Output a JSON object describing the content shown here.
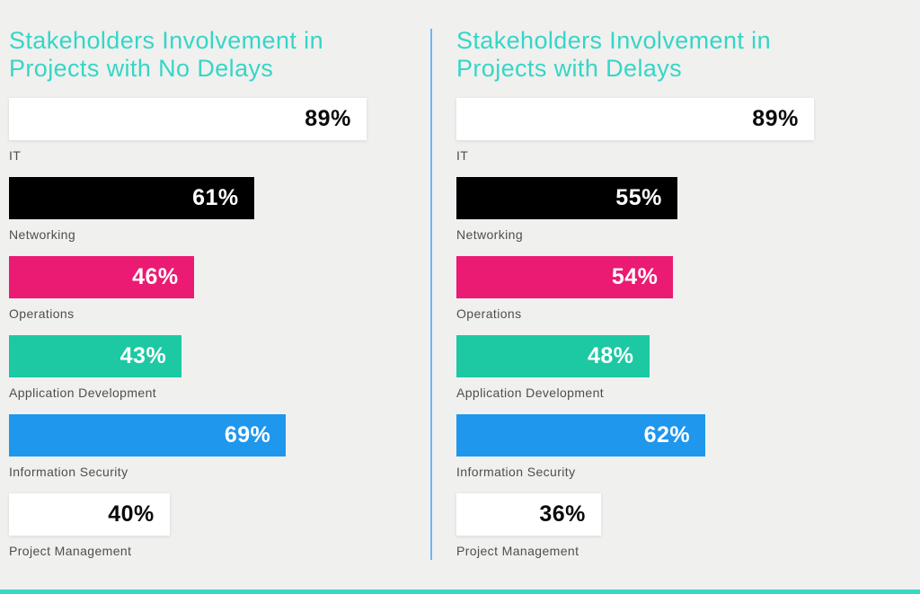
{
  "page": {
    "background_color": "#f0f0ef",
    "divider_color": "#6db6f3",
    "accent_bar_color": "#35d8c6",
    "title_color": "#35d6c6",
    "label_color": "#4e4e4e"
  },
  "charts": [
    {
      "title_line1": "Stakeholders Involvement in",
      "title_line2": "Projects with No Delays",
      "bars": [
        {
          "label": "IT",
          "value": 89,
          "display": "89%",
          "color": "#ffffff",
          "text_color": "#0a0a0a"
        },
        {
          "label": "Networking",
          "value": 61,
          "display": "61%",
          "color": "#000000",
          "text_color": "#ffffff"
        },
        {
          "label": "Operations",
          "value": 46,
          "display": "46%",
          "color": "#eb1a72",
          "text_color": "#ffffff"
        },
        {
          "label": "Application Development",
          "value": 43,
          "display": "43%",
          "color": "#1cc9a2",
          "text_color": "#ffffff"
        },
        {
          "label": "Information Security",
          "value": 69,
          "display": "69%",
          "color": "#1e97ed",
          "text_color": "#ffffff"
        },
        {
          "label": "Project Management",
          "value": 40,
          "display": "40%",
          "color": "#ffffff",
          "text_color": "#0a0a0a"
        }
      ]
    },
    {
      "title_line1": "Stakeholders Involvement in",
      "title_line2": "Projects with Delays",
      "bars": [
        {
          "label": "IT",
          "value": 89,
          "display": "89%",
          "color": "#ffffff",
          "text_color": "#0a0a0a"
        },
        {
          "label": "Networking",
          "value": 55,
          "display": "55%",
          "color": "#000000",
          "text_color": "#ffffff"
        },
        {
          "label": "Operations",
          "value": 54,
          "display": "54%",
          "color": "#eb1a72",
          "text_color": "#ffffff"
        },
        {
          "label": "Application Development",
          "value": 48,
          "display": "48%",
          "color": "#1cc9a2",
          "text_color": "#ffffff"
        },
        {
          "label": "Information Security",
          "value": 62,
          "display": "62%",
          "color": "#1e97ed",
          "text_color": "#ffffff"
        },
        {
          "label": "Project Management",
          "value": 36,
          "display": "36%",
          "color": "#ffffff",
          "text_color": "#0a0a0a"
        }
      ]
    }
  ],
  "chart_data": [
    {
      "type": "bar",
      "orientation": "horizontal",
      "title": "Stakeholders Involvement in Projects with No Delays",
      "categories": [
        "IT",
        "Networking",
        "Operations",
        "Application Development",
        "Information Security",
        "Project Management"
      ],
      "values": [
        89,
        61,
        46,
        43,
        69,
        40
      ],
      "unit": "%",
      "xlabel": "",
      "ylabel": "",
      "xlim": [
        0,
        100
      ],
      "grid": false,
      "legend": false,
      "value_labels": "inside-end",
      "bar_colors": [
        "#ffffff",
        "#000000",
        "#eb1a72",
        "#1cc9a2",
        "#1e97ed",
        "#ffffff"
      ]
    },
    {
      "type": "bar",
      "orientation": "horizontal",
      "title": "Stakeholders Involvement in Projects with Delays",
      "categories": [
        "IT",
        "Networking",
        "Operations",
        "Application Development",
        "Information Security",
        "Project Management"
      ],
      "values": [
        89,
        55,
        54,
        48,
        62,
        36
      ],
      "unit": "%",
      "xlabel": "",
      "ylabel": "",
      "xlim": [
        0,
        100
      ],
      "grid": false,
      "legend": false,
      "value_labels": "inside-end",
      "bar_colors": [
        "#ffffff",
        "#000000",
        "#eb1a72",
        "#1cc9a2",
        "#1e97ed",
        "#ffffff"
      ]
    }
  ]
}
